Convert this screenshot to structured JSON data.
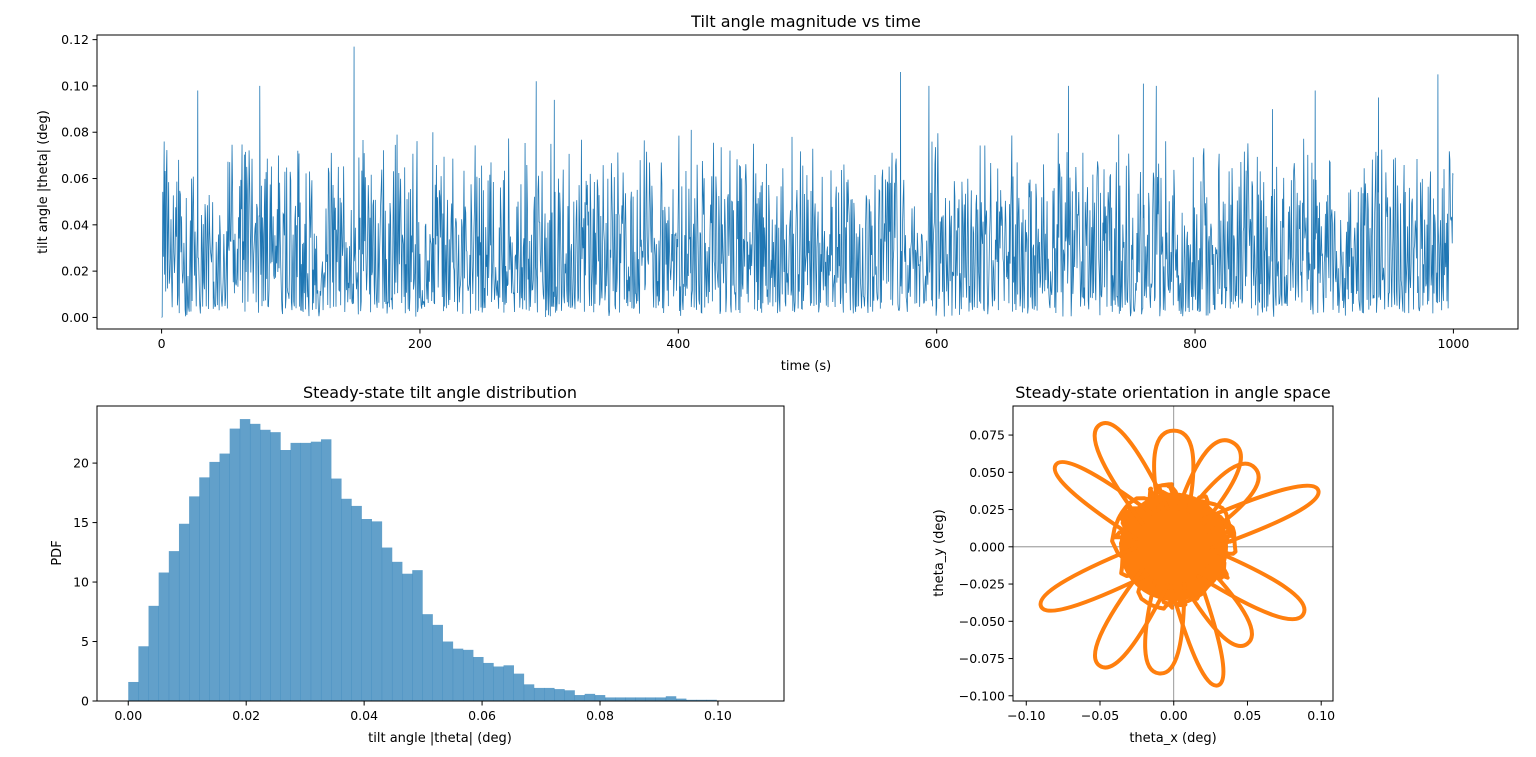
{
  "chart_data": [
    {
      "type": "line",
      "title": "Tilt angle magnitude vs time",
      "xlabel": "time (s)",
      "ylabel": "tilt angle |theta| (deg)",
      "xlim": [
        -50,
        1050
      ],
      "ylim": [
        -0.005,
        0.122
      ],
      "xticks": [
        0,
        200,
        400,
        600,
        800,
        1000
      ],
      "yticks": [
        0.0,
        0.02,
        0.04,
        0.06,
        0.08,
        0.1,
        0.12
      ],
      "xtick_labels": [
        "0",
        "200",
        "400",
        "600",
        "800",
        "1000"
      ],
      "ytick_labels": [
        "0.00",
        "0.02",
        "0.04",
        "0.06",
        "0.08",
        "0.10",
        "0.12"
      ],
      "grid": false,
      "color": "#1f77b4",
      "series": [
        {
          "x_range": [
            0,
            1000
          ],
          "num_points": 2200,
          "typical_band": [
            0.005,
            0.05
          ],
          "peaks": [
            {
              "x": 2,
              "y": 0.076
            },
            {
              "x": 28,
              "y": 0.098
            },
            {
              "x": 76,
              "y": 0.1
            },
            {
              "x": 149,
              "y": 0.117
            },
            {
              "x": 210,
              "y": 0.08
            },
            {
              "x": 290,
              "y": 0.102
            },
            {
              "x": 304,
              "y": 0.094
            },
            {
              "x": 410,
              "y": 0.081
            },
            {
              "x": 488,
              "y": 0.078
            },
            {
              "x": 572,
              "y": 0.106
            },
            {
              "x": 594,
              "y": 0.1
            },
            {
              "x": 702,
              "y": 0.1
            },
            {
              "x": 760,
              "y": 0.101
            },
            {
              "x": 770,
              "y": 0.1
            },
            {
              "x": 860,
              "y": 0.09
            },
            {
              "x": 893,
              "y": 0.098
            },
            {
              "x": 942,
              "y": 0.095
            },
            {
              "x": 988,
              "y": 0.105
            }
          ]
        }
      ]
    },
    {
      "type": "bar",
      "title": "Steady-state tilt angle distribution",
      "xlabel": "tilt angle |theta| (deg)",
      "ylabel": "PDF",
      "xlim": [
        -0.0053,
        0.1112
      ],
      "ylim": [
        0,
        24.8
      ],
      "xticks": [
        0.0,
        0.02,
        0.04,
        0.06,
        0.08,
        0.1
      ],
      "yticks": [
        0,
        5,
        10,
        15,
        20
      ],
      "xtick_labels": [
        "0.00",
        "0.02",
        "0.04",
        "0.06",
        "0.08",
        "0.10"
      ],
      "ytick_labels": [
        "0",
        "5",
        "10",
        "15",
        "20"
      ],
      "grid": false,
      "color": "#1f77b4",
      "opacity": 0.7,
      "bin_start": 0.0,
      "bin_width": 0.00172,
      "values": [
        1.6,
        4.6,
        8.0,
        10.8,
        12.6,
        14.9,
        17.2,
        18.8,
        20.1,
        20.8,
        22.9,
        23.7,
        23.3,
        22.8,
        22.6,
        21.1,
        21.7,
        21.7,
        21.8,
        22.0,
        18.7,
        17.0,
        16.4,
        15.3,
        15.1,
        12.9,
        11.7,
        10.7,
        11.0,
        7.3,
        6.4,
        5.0,
        4.4,
        4.3,
        3.7,
        3.2,
        2.9,
        3.0,
        2.3,
        1.4,
        1.1,
        1.1,
        1.0,
        0.9,
        0.5,
        0.6,
        0.5,
        0.3,
        0.3,
        0.3,
        0.3,
        0.3,
        0.3,
        0.4,
        0.2,
        0.1,
        0.1,
        0.1
      ]
    },
    {
      "type": "scatter",
      "title": "Steady-state orientation in angle space",
      "xlabel": "theta_x (deg)",
      "ylabel": "theta_y (deg)",
      "xlim": [
        -0.109,
        0.108
      ],
      "ylim": [
        -0.1035,
        0.0945
      ],
      "xticks": [
        -0.1,
        -0.05,
        0.0,
        0.05,
        0.1
      ],
      "yticks": [
        -0.1,
        -0.075,
        -0.05,
        -0.025,
        0.0,
        0.025,
        0.05,
        0.075
      ],
      "xtick_labels": [
        "−0.10",
        "−0.05",
        "0.00",
        "0.05",
        "0.10"
      ],
      "ytick_labels": [
        "−0.100",
        "−0.075",
        "−0.050",
        "−0.025",
        "0.000",
        "0.025",
        "0.050",
        "0.075"
      ],
      "grid": false,
      "reference_lines": {
        "x": 0.0,
        "y": 0.0,
        "color": "#808080"
      },
      "color": "#ff7f0e",
      "dense_core_radius": 0.04,
      "outer_loops": [
        {
          "x": -0.08,
          "y": 0.055
        },
        {
          "x": -0.05,
          "y": 0.082
        },
        {
          "x": 0.0,
          "y": 0.078
        },
        {
          "x": 0.04,
          "y": 0.07
        },
        {
          "x": 0.055,
          "y": 0.053
        },
        {
          "x": 0.098,
          "y": 0.038
        },
        {
          "x": 0.088,
          "y": -0.045
        },
        {
          "x": 0.05,
          "y": -0.065
        },
        {
          "x": 0.03,
          "y": -0.093
        },
        {
          "x": -0.01,
          "y": -0.085
        },
        {
          "x": -0.05,
          "y": -0.08
        },
        {
          "x": -0.09,
          "y": -0.04
        }
      ]
    }
  ]
}
